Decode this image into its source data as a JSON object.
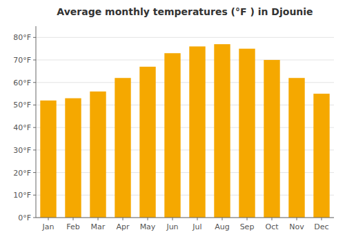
{
  "chart_data": {
    "type": "bar",
    "title": "Average monthly temperatures (°F ) in Djounie",
    "categories": [
      "Jan",
      "Feb",
      "Mar",
      "Apr",
      "May",
      "Jun",
      "Jul",
      "Aug",
      "Sep",
      "Oct",
      "Nov",
      "Dec"
    ],
    "values": [
      52,
      53,
      56,
      62,
      67,
      73,
      76,
      77,
      75,
      70,
      62,
      55
    ],
    "color": "#F5A800",
    "ylim": [
      0,
      85
    ],
    "yticks": [
      {
        "value": 0,
        "label": "0°F"
      },
      {
        "value": 10,
        "label": "10°F"
      },
      {
        "value": 20,
        "label": "20°F"
      },
      {
        "value": 30,
        "label": "30°F"
      },
      {
        "value": 40,
        "label": "40°F"
      },
      {
        "value": 50,
        "label": "50°F"
      },
      {
        "value": 60,
        "label": "60°F"
      },
      {
        "value": 70,
        "label": "70°F"
      },
      {
        "value": 80,
        "label": "80°F"
      }
    ],
    "grid": true
  }
}
